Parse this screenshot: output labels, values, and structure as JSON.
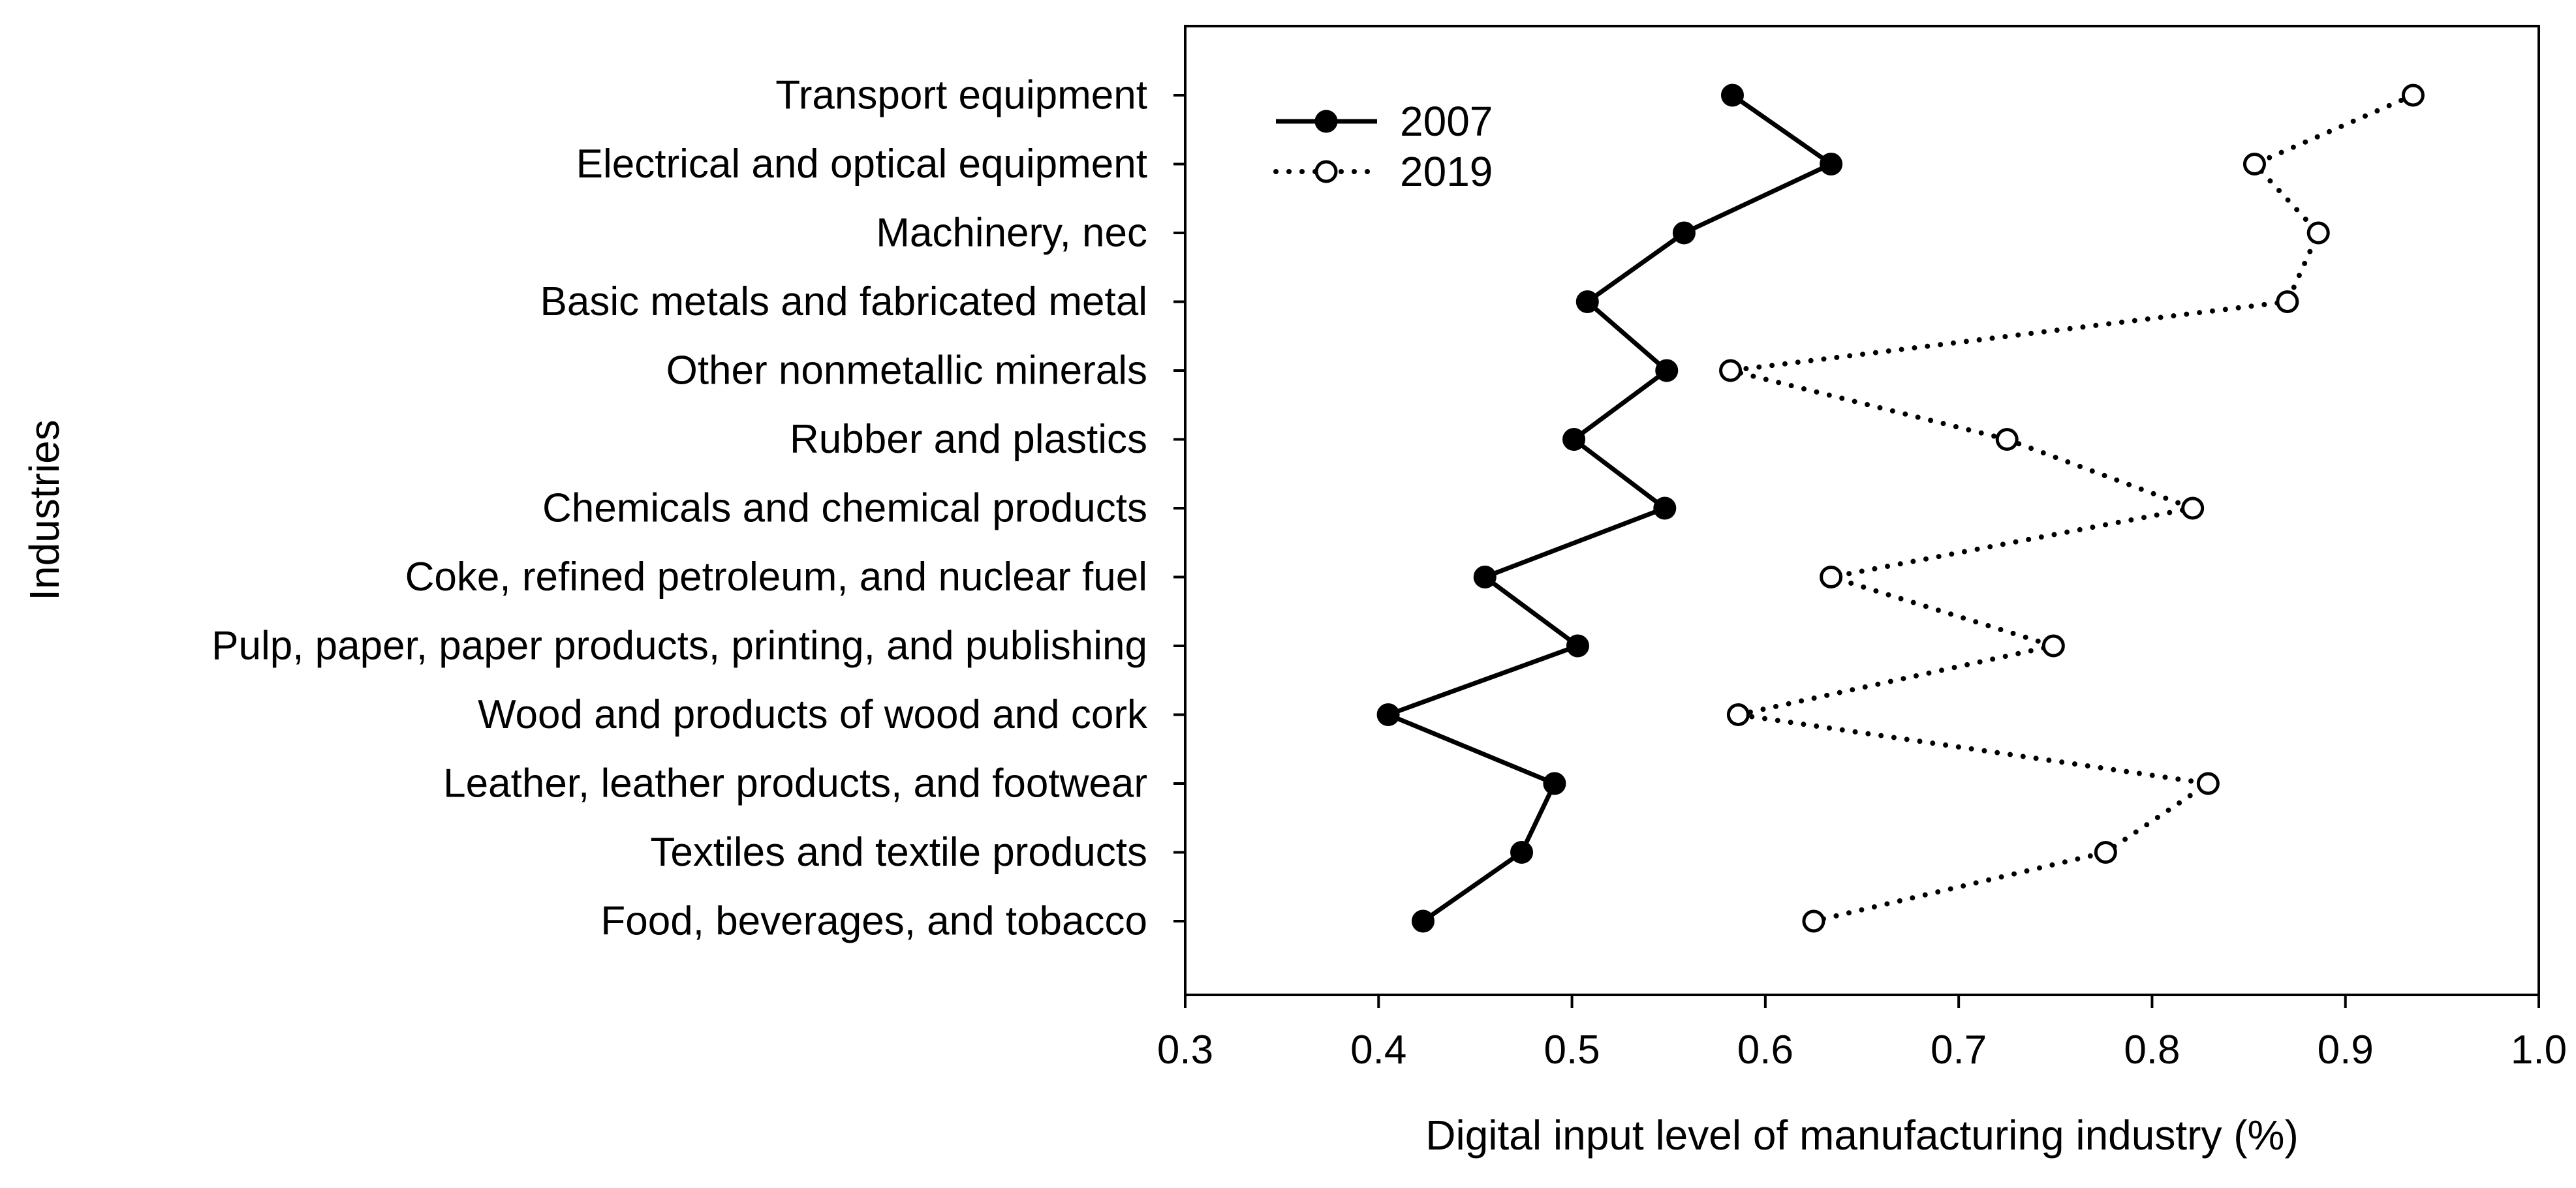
{
  "chart_data": {
    "type": "line",
    "orientation": "horizontal",
    "title": "",
    "xlabel": "Digital input level of manufacturing industry (%)",
    "ylabel": "Industries",
    "xlim": [
      0.3,
      1.0
    ],
    "xticks": [
      "0.3",
      "0.4",
      "0.5",
      "0.6",
      "0.7",
      "0.8",
      "0.9",
      "1.0"
    ],
    "categories": [
      "Transport equipment",
      "Electrical and optical equipment",
      "Machinery, nec",
      "Basic metals and fabricated metal",
      "Other nonmetallic minerals",
      "Rubber and plastics",
      "Chemicals and chemical products",
      "Coke, refined petroleum, and nuclear fuel",
      "Pulp, paper, paper products, printing, and publishing",
      "Wood and products of wood and cork",
      "Leather, leather products, and footwear",
      "Textiles and textile products",
      "Food, beverages, and tobacco"
    ],
    "series": [
      {
        "name": "2007",
        "line_style": "solid",
        "marker": "filled-circle",
        "color": "#000000",
        "values": [
          0.583,
          0.634,
          0.558,
          0.508,
          0.549,
          0.501,
          0.548,
          0.455,
          0.503,
          0.405,
          0.491,
          0.474,
          0.423
        ]
      },
      {
        "name": "2019",
        "line_style": "dotted",
        "marker": "open-circle",
        "color": "#000000",
        "values": [
          0.935,
          0.853,
          0.886,
          0.87,
          0.582,
          0.725,
          0.821,
          0.634,
          0.749,
          0.586,
          0.829,
          0.776,
          0.625
        ]
      }
    ],
    "legend_position": "top-left",
    "grid": false
  }
}
